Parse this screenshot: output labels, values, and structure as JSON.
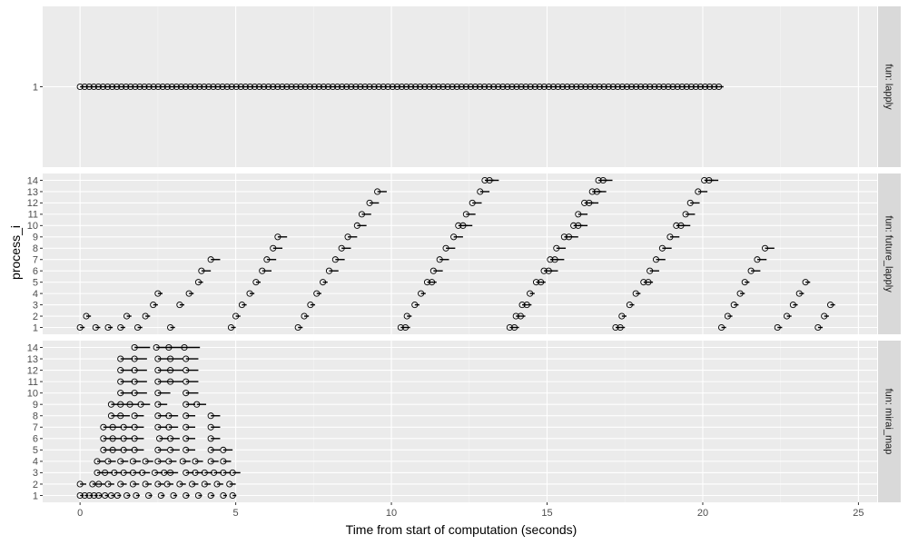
{
  "chart_data": {
    "type": "scatter",
    "title": "",
    "xlabel": "Time from start of computation (seconds)",
    "ylabel": "process_i",
    "xlim": [
      -1.2,
      25.6
    ],
    "x_ticks": [
      0,
      5,
      10,
      15,
      20,
      25
    ],
    "x_tick_labels": [
      "0",
      "5",
      "10",
      "15",
      "20",
      "25"
    ],
    "facets": [
      {
        "strip": "fun: lapply",
        "process_ids": [
          1
        ],
        "series": [
          {
            "process": 1,
            "generator": "linear",
            "start": 0.0,
            "step": 0.1476,
            "count": 140,
            "duration": 0.15
          }
        ]
      },
      {
        "strip": "fun: future_lapply",
        "process_ids": [
          1,
          2,
          3,
          4,
          5,
          6,
          7,
          8,
          9,
          10,
          11,
          12,
          13,
          14
        ],
        "series": [
          {
            "process": 1,
            "times": [
              0.0,
              0.5,
              0.9,
              1.3,
              1.85,
              2.9,
              4.85,
              7.0,
              10.3,
              10.45,
              13.8,
              13.95,
              17.2,
              17.35,
              20.6,
              22.4,
              23.7
            ],
            "duration": 0.15
          },
          {
            "process": 2,
            "times": [
              0.2,
              1.5,
              2.1,
              5.0,
              7.2,
              10.5,
              14.0,
              14.15,
              17.4,
              20.8,
              22.7,
              23.9
            ],
            "duration": 0.15
          },
          {
            "process": 3,
            "times": [
              2.35,
              3.2,
              5.2,
              7.4,
              10.75,
              14.2,
              14.35,
              17.65,
              21.0,
              22.9,
              24.1
            ],
            "duration": 0.15
          },
          {
            "process": 4,
            "times": [
              2.5,
              3.5,
              5.45,
              7.6,
              10.95,
              14.45,
              17.85,
              21.2,
              23.1
            ],
            "duration": 0.15
          },
          {
            "process": 5,
            "times": [
              3.8,
              5.65,
              7.8,
              11.15,
              11.3,
              14.65,
              14.8,
              18.1,
              18.25,
              21.35,
              23.3
            ],
            "duration": 0.15
          },
          {
            "process": 6,
            "times": [
              3.9,
              5.85,
              8.0,
              11.35,
              14.9,
              15.05,
              18.3,
              21.55
            ],
            "duration": 0.3
          },
          {
            "process": 7,
            "times": [
              4.2,
              6.0,
              8.2,
              11.55,
              15.1,
              15.25,
              18.5,
              21.75
            ],
            "duration": 0.3
          },
          {
            "process": 8,
            "times": [
              6.2,
              8.4,
              11.75,
              15.3,
              18.7,
              22.0
            ],
            "duration": 0.3
          },
          {
            "process": 9,
            "times": [
              6.35,
              8.6,
              12.0,
              15.55,
              15.7,
              18.95
            ],
            "duration": 0.3
          },
          {
            "process": 10,
            "times": [
              8.9,
              12.15,
              12.3,
              15.85,
              16.0,
              19.15,
              19.3
            ],
            "duration": 0.3
          },
          {
            "process": 11,
            "times": [
              9.05,
              12.4,
              16.0,
              19.45
            ],
            "duration": 0.3
          },
          {
            "process": 12,
            "times": [
              9.3,
              12.6,
              16.2,
              16.35,
              19.6
            ],
            "duration": 0.3
          },
          {
            "process": 13,
            "times": [
              9.55,
              12.85,
              16.45,
              16.6,
              19.85
            ],
            "duration": 0.3
          },
          {
            "process": 14,
            "times": [
              13.0,
              13.15,
              16.65,
              16.8,
              20.05,
              20.2
            ],
            "duration": 0.3
          }
        ]
      },
      {
        "strip": "fun: mirai_map",
        "process_ids": [
          1,
          2,
          3,
          4,
          5,
          6,
          7,
          8,
          9,
          10,
          11,
          12,
          13,
          14
        ],
        "series": [
          {
            "process": 1,
            "times": [
              0.0,
              0.15,
              0.3,
              0.45,
              0.6,
              0.8,
              1.0,
              1.2,
              1.5,
              1.8,
              2.2,
              2.6,
              3.0,
              3.4,
              3.8,
              4.2,
              4.6,
              4.9
            ],
            "duration": 0.12
          },
          {
            "process": 2,
            "times": [
              0.0,
              0.4,
              0.6,
              0.9,
              1.3,
              1.7,
              2.1,
              2.5,
              2.8,
              3.2,
              3.6,
              4.0,
              4.4,
              4.8
            ],
            "duration": 0.2
          },
          {
            "process": 3,
            "times": [
              0.55,
              0.8,
              1.1,
              1.4,
              1.7,
              2.0,
              2.4,
              2.7,
              2.9,
              3.4,
              3.7,
              4.0,
              4.3,
              4.6,
              4.9
            ],
            "duration": 0.25
          },
          {
            "process": 4,
            "times": [
              0.55,
              0.9,
              1.3,
              1.7,
              2.1,
              2.5,
              2.85,
              3.3,
              3.7,
              4.2,
              4.6
            ],
            "duration": 0.25
          },
          {
            "process": 5,
            "times": [
              0.75,
              1.05,
              1.4,
              1.75,
              2.5,
              2.9,
              3.4,
              4.2,
              4.6
            ],
            "duration": 0.3
          },
          {
            "process": 6,
            "times": [
              0.75,
              1.05,
              1.4,
              1.75,
              2.55,
              2.9,
              3.4,
              4.2
            ],
            "duration": 0.3
          },
          {
            "process": 7,
            "times": [
              0.75,
              1.05,
              1.4,
              1.75,
              2.5,
              2.85,
              3.4,
              4.2
            ],
            "duration": 0.3
          },
          {
            "process": 8,
            "times": [
              1.0,
              1.3,
              1.75,
              2.5,
              2.85,
              3.4,
              4.2
            ],
            "duration": 0.3
          },
          {
            "process": 9,
            "times": [
              1.0,
              1.3,
              1.6,
              1.95,
              2.5,
              3.4,
              3.75
            ],
            "duration": 0.3
          },
          {
            "process": 10,
            "times": [
              1.3,
              1.75,
              2.5,
              3.4
            ],
            "duration": 0.4
          },
          {
            "process": 11,
            "times": [
              1.3,
              1.75,
              2.5,
              2.9,
              3.4
            ],
            "duration": 0.4
          },
          {
            "process": 12,
            "times": [
              1.3,
              1.75,
              2.5,
              2.9,
              3.4
            ],
            "duration": 0.4
          },
          {
            "process": 13,
            "times": [
              1.3,
              1.75,
              2.5,
              2.9,
              3.4
            ],
            "duration": 0.4
          },
          {
            "process": 14,
            "times": [
              1.75,
              2.45,
              2.85,
              3.35
            ],
            "duration": 0.5
          }
        ]
      }
    ]
  }
}
